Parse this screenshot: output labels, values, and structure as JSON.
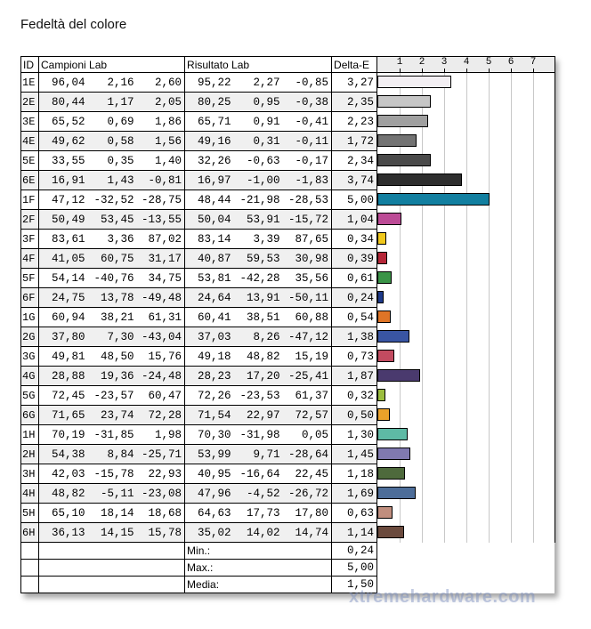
{
  "title": "Fedeltà del colore",
  "headers": {
    "id": "ID",
    "samples": "Campioni Lab",
    "results": "Risultato Lab",
    "delta": "Delta-E"
  },
  "chart_data": {
    "type": "bar",
    "orientation": "horizontal",
    "xlim": [
      0,
      8
    ],
    "ticks": [
      "1",
      "2",
      "3",
      "4",
      "5",
      "6",
      "7"
    ],
    "grid": true
  },
  "rows": [
    {
      "id": "1E",
      "s": [
        "96,04",
        "2,16",
        "2,60"
      ],
      "r": [
        "95,22",
        "2,27",
        "-0,85"
      ],
      "de": "3,27",
      "v": 3.27,
      "color": "#f3eff3"
    },
    {
      "id": "2E",
      "s": [
        "80,44",
        "1,17",
        "2,05"
      ],
      "r": [
        "80,25",
        "0,95",
        "-0,38"
      ],
      "de": "2,35",
      "v": 2.35,
      "color": "#c6c6c6"
    },
    {
      "id": "3E",
      "s": [
        "65,52",
        "0,69",
        "1,86"
      ],
      "r": [
        "65,71",
        "0,91",
        "-0,41"
      ],
      "de": "2,23",
      "v": 2.23,
      "color": "#a0a0a0"
    },
    {
      "id": "4E",
      "s": [
        "49,62",
        "0,58",
        "1,56"
      ],
      "r": [
        "49,16",
        "0,31",
        "-0,11"
      ],
      "de": "1,72",
      "v": 1.72,
      "color": "#737373"
    },
    {
      "id": "5E",
      "s": [
        "33,55",
        "0,35",
        "1,40"
      ],
      "r": [
        "32,26",
        "-0,63",
        "-0,17"
      ],
      "de": "2,34",
      "v": 2.34,
      "color": "#4a4a4a"
    },
    {
      "id": "6E",
      "s": [
        "16,91",
        "1,43",
        "-0,81"
      ],
      "r": [
        "16,97",
        "-1,00",
        "-1,83"
      ],
      "de": "3,74",
      "v": 3.74,
      "color": "#2e2e2e"
    },
    {
      "id": "1F",
      "s": [
        "47,12",
        "-32,52",
        "-28,75"
      ],
      "r": [
        "48,44",
        "-21,98",
        "-28,53"
      ],
      "de": "5,00",
      "v": 5.0,
      "color": "#127fa0"
    },
    {
      "id": "2F",
      "s": [
        "50,49",
        "53,45",
        "-13,55"
      ],
      "r": [
        "50,04",
        "53,91",
        "-15,72"
      ],
      "de": "1,04",
      "v": 1.04,
      "color": "#bc4b96"
    },
    {
      "id": "3F",
      "s": [
        "83,61",
        "3,36",
        "87,02"
      ],
      "r": [
        "83,14",
        "3,39",
        "87,65"
      ],
      "de": "0,34",
      "v": 0.34,
      "color": "#f0c81c"
    },
    {
      "id": "4F",
      "s": [
        "41,05",
        "60,75",
        "31,17"
      ],
      "r": [
        "40,87",
        "59,53",
        "30,98"
      ],
      "de": "0,39",
      "v": 0.39,
      "color": "#b52638"
    },
    {
      "id": "5F",
      "s": [
        "54,14",
        "-40,76",
        "34,75"
      ],
      "r": [
        "53,81",
        "-42,28",
        "35,56"
      ],
      "de": "0,61",
      "v": 0.61,
      "color": "#3a9447"
    },
    {
      "id": "6F",
      "s": [
        "24,75",
        "13,78",
        "-49,48"
      ],
      "r": [
        "24,64",
        "13,91",
        "-50,11"
      ],
      "de": "0,24",
      "v": 0.24,
      "color": "#1e3a8a"
    },
    {
      "id": "1G",
      "s": [
        "60,94",
        "38,21",
        "61,31"
      ],
      "r": [
        "60,41",
        "38,51",
        "60,88"
      ],
      "de": "0,54",
      "v": 0.54,
      "color": "#df7426"
    },
    {
      "id": "2G",
      "s": [
        "37,80",
        "7,30",
        "-43,04"
      ],
      "r": [
        "37,03",
        "8,26",
        "-47,12"
      ],
      "de": "1,38",
      "v": 1.38,
      "color": "#3955a3"
    },
    {
      "id": "3G",
      "s": [
        "49,81",
        "48,50",
        "15,76"
      ],
      "r": [
        "49,18",
        "48,82",
        "15,19"
      ],
      "de": "0,73",
      "v": 0.73,
      "color": "#c24b60"
    },
    {
      "id": "4G",
      "s": [
        "28,88",
        "19,36",
        "-24,48"
      ],
      "r": [
        "28,23",
        "17,20",
        "-25,41"
      ],
      "de": "1,87",
      "v": 1.87,
      "color": "#4a3a6e"
    },
    {
      "id": "5G",
      "s": [
        "72,45",
        "-23,57",
        "60,47"
      ],
      "r": [
        "72,26",
        "-23,53",
        "61,37"
      ],
      "de": "0,32",
      "v": 0.32,
      "color": "#9bbd3e"
    },
    {
      "id": "6G",
      "s": [
        "71,65",
        "23,74",
        "72,28"
      ],
      "r": [
        "71,54",
        "22,97",
        "72,57"
      ],
      "de": "0,50",
      "v": 0.5,
      "color": "#eaa22a"
    },
    {
      "id": "1H",
      "s": [
        "70,19",
        "-31,85",
        "1,98"
      ],
      "r": [
        "70,30",
        "-31,98",
        "0,05"
      ],
      "de": "1,30",
      "v": 1.3,
      "color": "#5ebaa5"
    },
    {
      "id": "2H",
      "s": [
        "54,38",
        "8,84",
        "-25,71"
      ],
      "r": [
        "53,99",
        "9,71",
        "-28,64"
      ],
      "de": "1,45",
      "v": 1.45,
      "color": "#8079b0"
    },
    {
      "id": "3H",
      "s": [
        "42,03",
        "-15,78",
        "22,93"
      ],
      "r": [
        "40,95",
        "-16,64",
        "22,45"
      ],
      "de": "1,18",
      "v": 1.18,
      "color": "#4e6a3c"
    },
    {
      "id": "4H",
      "s": [
        "48,82",
        "-5,11",
        "-23,08"
      ],
      "r": [
        "47,96",
        "-4,52",
        "-26,72"
      ],
      "de": "1,69",
      "v": 1.69,
      "color": "#4d6d99"
    },
    {
      "id": "5H",
      "s": [
        "65,10",
        "18,14",
        "18,68"
      ],
      "r": [
        "64,63",
        "17,73",
        "17,80"
      ],
      "de": "0,63",
      "v": 0.63,
      "color": "#c08e7e"
    },
    {
      "id": "6H",
      "s": [
        "36,13",
        "14,15",
        "15,78"
      ],
      "r": [
        "35,02",
        "14,02",
        "14,74"
      ],
      "de": "1,14",
      "v": 1.14,
      "color": "#6b4a3d"
    }
  ],
  "summary": [
    {
      "label": "Min.:",
      "value": "0,24"
    },
    {
      "label": "Max.:",
      "value": "5,00"
    },
    {
      "label": "Media:",
      "value": "1,50"
    }
  ],
  "watermark": "xtremehardware.com"
}
